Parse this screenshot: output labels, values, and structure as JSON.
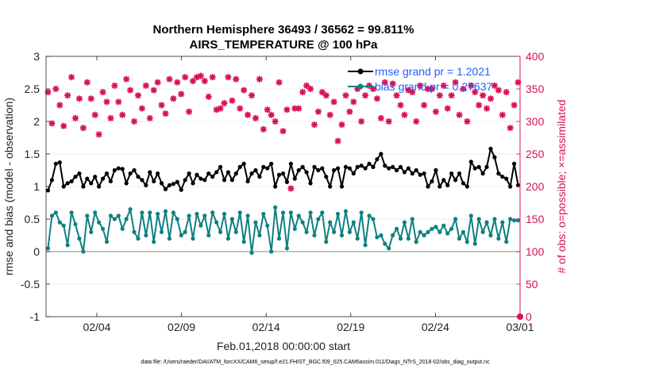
{
  "chart_data": {
    "type": "line",
    "title_line1": "Northern Hemisphere 36493 / 36562 = 99.811%",
    "title_line2": "AIRS_TEMPERATURE @ 100 hPa",
    "ylabel_left": "rmse and bias (model - observation)",
    "ylabel_right": "# of obs: o=possible; ×=assimilated",
    "xlabel": "Feb.01,2018 00:00:00 start",
    "footer": "data file: /Users/raeder/DAI/ATM_forcXX/CAM6_setup/f.e21.FHIST_BGC.f09_025.CAM6assim.011/Diags_NTrS_2018-02/obs_diag_output.nc",
    "xlim": [
      1,
      29
    ],
    "ylim_left": [
      -1,
      3
    ],
    "ylim_right": [
      0,
      400
    ],
    "x_ticks": [
      {
        "value": 4,
        "label": "02/04"
      },
      {
        "value": 9,
        "label": "02/09"
      },
      {
        "value": 14,
        "label": "02/14"
      },
      {
        "value": 19,
        "label": "02/19"
      },
      {
        "value": 24,
        "label": "02/24"
      },
      {
        "value": 29,
        "label": "03/01"
      }
    ],
    "y_ticks_left": [
      "-1",
      "-0.5",
      "0",
      "0.5",
      "1",
      "1.5",
      "2",
      "2.5",
      "3"
    ],
    "y_ticks_right": [
      "0",
      "50",
      "100",
      "150",
      "200",
      "250",
      "300",
      "350",
      "400"
    ],
    "legend": [
      {
        "name": "rmse grand pr = 1.2021",
        "color": "#000000"
      },
      {
        "name": "bias grand pr = 0.27637",
        "color": "#0f8080"
      }
    ],
    "rmse_values": [
      0.94,
      1.1,
      1.35,
      1.37,
      1.0,
      1.05,
      1.08,
      1.15,
      1.2,
      1.0,
      1.12,
      1.05,
      1.15,
      1.0,
      1.12,
      1.2,
      1.08,
      1.25,
      1.28,
      1.27,
      1.05,
      1.2,
      1.25,
      1.15,
      1.1,
      1.02,
      1.22,
      1.08,
      1.2,
      1.05,
      0.96,
      1.02,
      1.04,
      1.07,
      0.95,
      1.1,
      1.2,
      1.05,
      1.18,
      1.12,
      1.1,
      1.2,
      1.15,
      1.22,
      1.3,
      1.1,
      1.22,
      1.1,
      1.2,
      1.3,
      1.35,
      1.08,
      1.2,
      1.25,
      1.15,
      1.3,
      1.28,
      1.35,
      1.0,
      1.18,
      1.2,
      1.07,
      1.35,
      1.12,
      1.25,
      1.3,
      1.22,
      1.05,
      1.3,
      1.25,
      1.28,
      1.15,
      1.0,
      1.25,
      1.28,
      1.0,
      1.3,
      1.28,
      1.2,
      1.3,
      1.32,
      1.28,
      1.35,
      1.3,
      1.42,
      1.5,
      1.32,
      1.28,
      1.3,
      1.25,
      1.3,
      1.22,
      1.28,
      1.2,
      1.25,
      1.18,
      1.2,
      1.0,
      1.08,
      1.25,
      1.0,
      1.1,
      1.02,
      1.2,
      1.1,
      1.2,
      1.05,
      1.0,
      1.38,
      1.28,
      1.3,
      1.2,
      1.3,
      1.58,
      1.45,
      1.2,
      1.15,
      1.12,
      1.0,
      1.35,
      1.02
    ],
    "bias_values": [
      0.05,
      0.55,
      0.6,
      0.45,
      0.4,
      0.1,
      0.6,
      0.42,
      0.2,
      0.0,
      0.55,
      0.3,
      0.6,
      0.45,
      0.35,
      0.15,
      0.55,
      0.5,
      0.55,
      0.35,
      0.5,
      0.65,
      0.3,
      0.2,
      0.6,
      0.25,
      0.6,
      0.15,
      0.58,
      0.3,
      0.62,
      0.2,
      0.6,
      0.5,
      0.25,
      0.3,
      0.55,
      0.2,
      0.58,
      0.4,
      0.55,
      0.25,
      0.6,
      0.45,
      0.3,
      0.58,
      0.2,
      0.5,
      0.3,
      0.6,
      0.15,
      0.55,
      -0.02,
      0.45,
      0.25,
      0.58,
      0.4,
      0.0,
      0.68,
      0.2,
      0.6,
      0.05,
      0.6,
      0.35,
      0.55,
      0.45,
      0.3,
      0.6,
      0.25,
      0.5,
      0.6,
      0.15,
      0.45,
      0.3,
      0.58,
      0.25,
      0.62,
      0.3,
      0.45,
      0.2,
      0.6,
      0.1,
      0.55,
      0.5,
      0.22,
      0.25,
      0.12,
      0.05,
      0.25,
      0.35,
      0.2,
      0.45,
      0.2,
      0.5,
      0.15,
      0.3,
      0.25,
      0.3,
      0.35,
      0.38,
      0.3,
      0.4,
      0.28,
      0.35,
      0.5,
      0.2,
      0.3,
      0.15,
      0.55,
      0.12,
      0.5,
      0.3,
      0.45,
      0.25,
      0.5,
      0.2,
      0.45,
      0.15,
      0.5,
      0.48,
      0.48
    ],
    "obs_values": [
      345,
      297,
      350,
      325,
      293,
      340,
      368,
      305,
      335,
      290,
      360,
      335,
      310,
      280,
      345,
      330,
      305,
      355,
      330,
      310,
      365,
      348,
      300,
      340,
      320,
      355,
      305,
      348,
      360,
      325,
      312,
      365,
      335,
      360,
      342,
      368,
      315,
      362,
      368,
      370,
      362,
      338,
      368,
      318,
      320,
      328,
      368,
      332,
      365,
      320,
      348,
      310,
      340,
      305,
      365,
      288,
      318,
      310,
      300,
      360,
      285,
      318,
      197,
      320,
      320,
      345,
      355,
      350,
      295,
      315,
      345,
      340,
      310,
      330,
      270,
      295,
      340,
      315,
      330,
      350,
      300,
      340,
      355,
      350,
      335,
      305,
      360,
      300,
      358,
      340,
      325,
      310,
      348,
      345,
      300,
      355,
      325,
      350,
      350,
      315,
      340,
      355,
      320,
      340,
      360,
      310,
      350,
      300,
      355,
      345,
      325,
      340,
      320,
      335,
      355,
      348,
      310,
      345,
      290,
      325,
      360
    ]
  }
}
